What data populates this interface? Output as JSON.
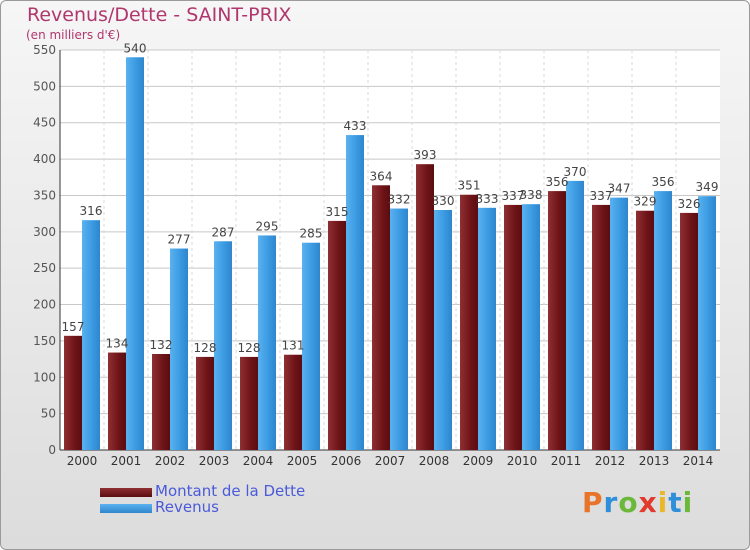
{
  "chart_data": {
    "type": "bar",
    "title": "Revenus/Dette - SAINT-PRIX",
    "subtitle": "(en milliers d'€)",
    "categories": [
      "2000",
      "2001",
      "2002",
      "2003",
      "2004",
      "2005",
      "2006",
      "2007",
      "2008",
      "2009",
      "2010",
      "2011",
      "2012",
      "2013",
      "2014"
    ],
    "series": [
      {
        "name": "Montant de la Dette",
        "color": "#7a1f22",
        "values": [
          157,
          134,
          132,
          128,
          128,
          131,
          315,
          364,
          393,
          351,
          337,
          356,
          337,
          329,
          326
        ]
      },
      {
        "name": "Revenus",
        "color": "#3a9ee4",
        "values": [
          316,
          540,
          277,
          287,
          295,
          285,
          433,
          332,
          330,
          333,
          338,
          370,
          347,
          356,
          349
        ]
      }
    ],
    "ylim": [
      0,
      550
    ],
    "yticks": [
      0,
      50,
      100,
      150,
      200,
      250,
      300,
      350,
      400,
      450,
      500,
      550
    ],
    "grid": true,
    "legend": "bottom-left"
  },
  "brand": {
    "letters": [
      "P",
      "r",
      "o",
      "x",
      "i",
      "t",
      "i"
    ],
    "colors": [
      "#e8742a",
      "#2f8fd8",
      "#6cb83a",
      "#e23b2e",
      "#e8b82a",
      "#2f8fd8",
      "#6cb83a"
    ]
  }
}
